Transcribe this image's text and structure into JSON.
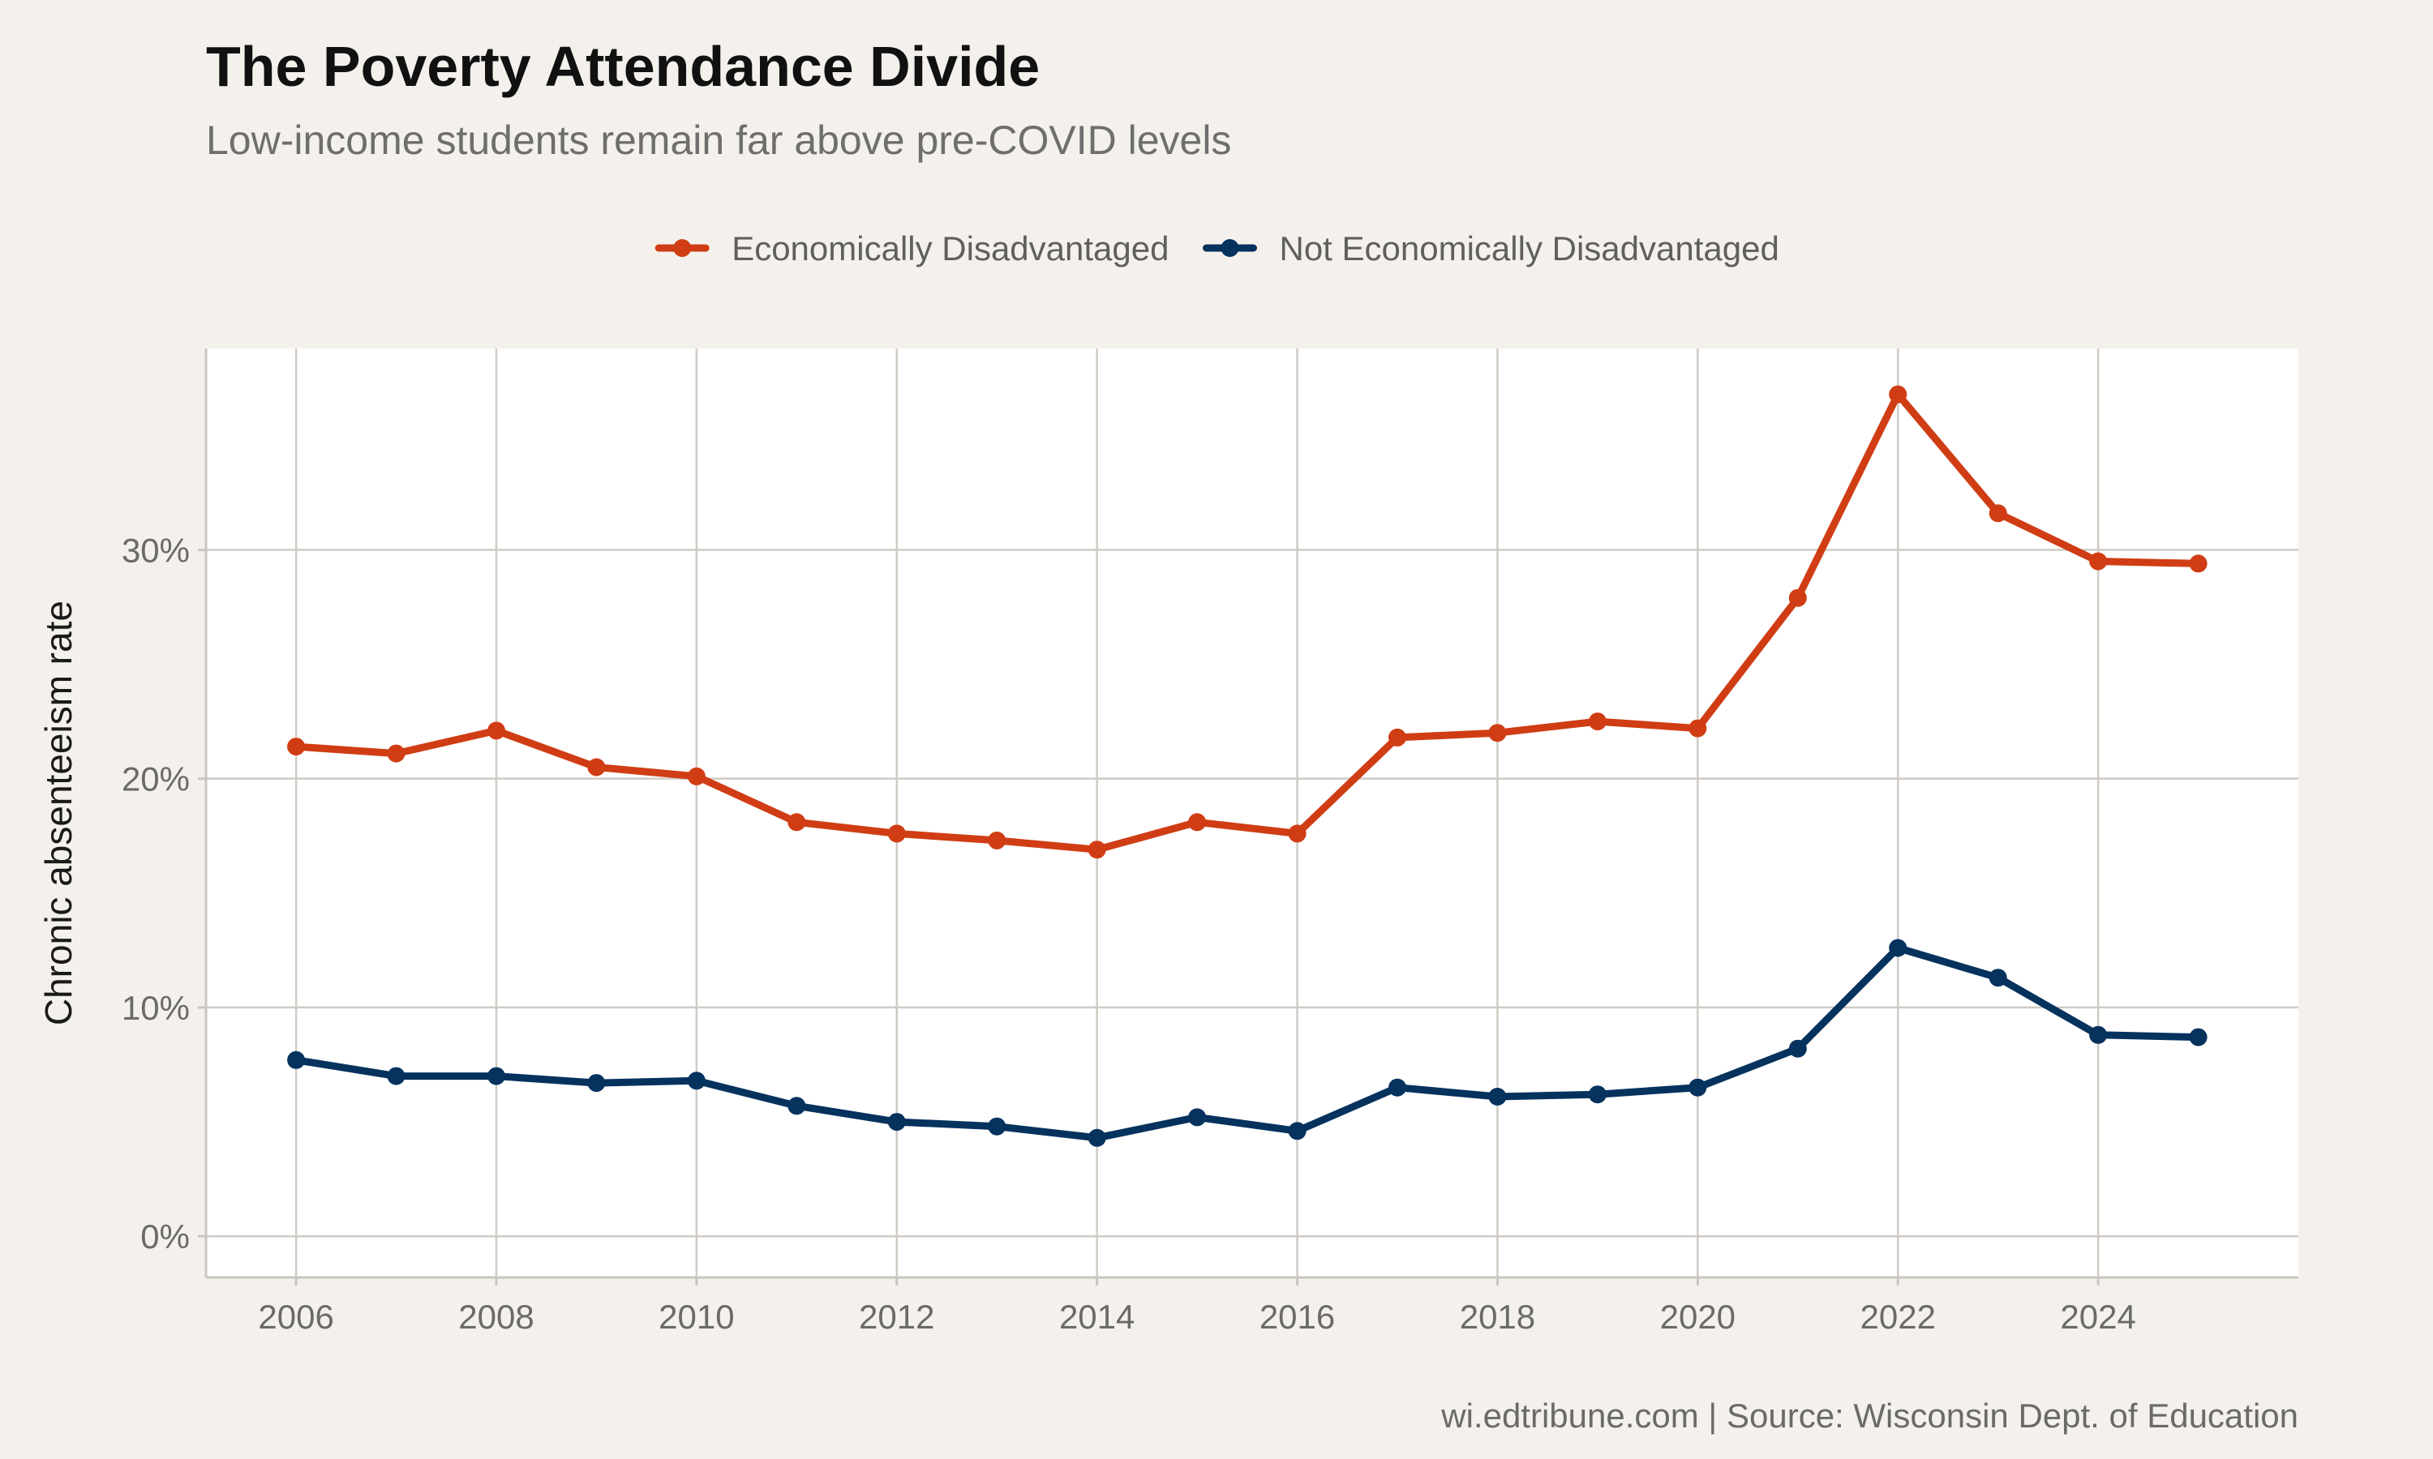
{
  "chart_data": {
    "type": "line",
    "title": "The Poverty Attendance Divide",
    "subtitle": "Low-income students remain far above pre-COVID levels",
    "caption": "wi.edtribune.com | Source: Wisconsin Dept. of Education",
    "ylabel": "Chronic absenteeism rate",
    "xlabel": "",
    "x": [
      2006,
      2007,
      2008,
      2009,
      2010,
      2011,
      2012,
      2013,
      2014,
      2015,
      2016,
      2017,
      2018,
      2019,
      2020,
      2021,
      2022,
      2023,
      2024,
      2025
    ],
    "xlim": [
      2005.1,
      2026.0
    ],
    "ylim": [
      -0.018,
      0.388
    ],
    "x_ticks": [
      2006,
      2008,
      2010,
      2012,
      2014,
      2016,
      2018,
      2020,
      2022,
      2024
    ],
    "x_tick_labels": [
      "2006",
      "2008",
      "2010",
      "2012",
      "2014",
      "2016",
      "2018",
      "2020",
      "2022",
      "2024"
    ],
    "y_ticks": [
      0,
      0.1,
      0.2,
      0.3
    ],
    "y_tick_labels": [
      "0%",
      "10%",
      "20%",
      "30%"
    ],
    "grid": true,
    "legend_position": "top",
    "series": [
      {
        "name": "Economically Disadvantaged",
        "color": "#d03d14",
        "values": [
          0.214,
          0.211,
          0.221,
          0.205,
          0.201,
          0.181,
          0.176,
          0.173,
          0.169,
          0.181,
          0.176,
          0.218,
          0.22,
          0.225,
          0.222,
          0.279,
          0.368,
          0.316,
          0.295,
          0.294
        ]
      },
      {
        "name": "Not Economically Disadvantaged",
        "color": "#06325e",
        "values": [
          0.077,
          0.07,
          0.07,
          0.067,
          0.068,
          0.057,
          0.05,
          0.048,
          0.043,
          0.052,
          0.046,
          0.065,
          0.061,
          0.062,
          0.065,
          0.082,
          0.126,
          0.113,
          0.088,
          0.087
        ]
      }
    ]
  }
}
